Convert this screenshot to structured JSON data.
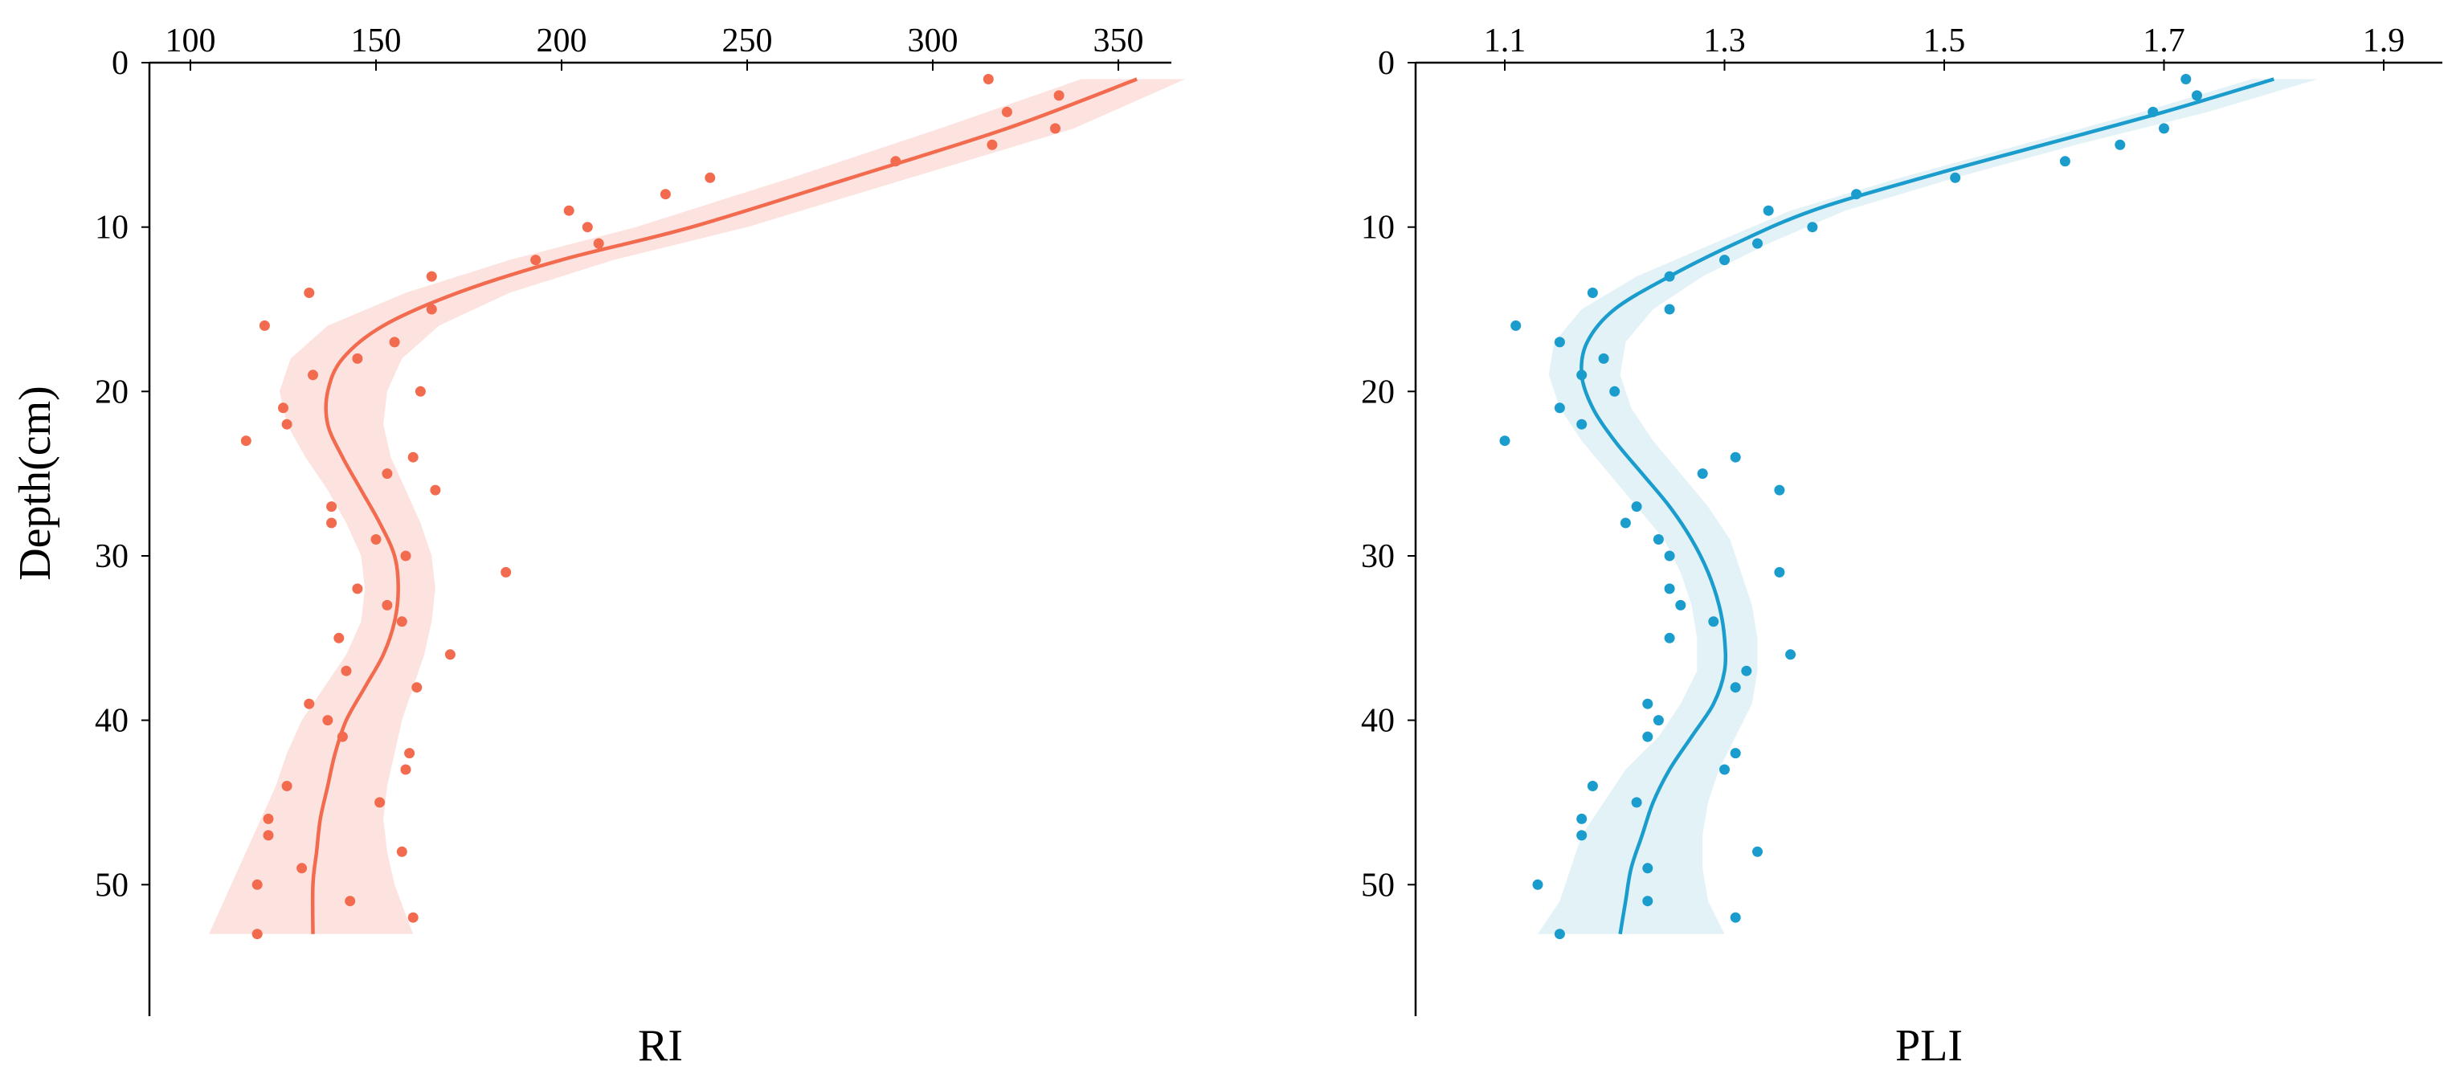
{
  "chart_data": [
    {
      "type": "scatter",
      "xlabel": "RI",
      "ylabel": "Depth(cm)",
      "x_axis_position": "top",
      "y_axis_inverted": true,
      "xlim": [
        98,
        368
      ],
      "ylim": [
        0,
        58
      ],
      "xticks": [
        100,
        150,
        200,
        250,
        300,
        350
      ],
      "yticks": [
        0,
        10,
        20,
        30,
        40,
        50
      ],
      "grid": false,
      "legend": "none",
      "colors": {
        "points": "#f26b4f",
        "line": "#f26b4f",
        "band": "#fde3df"
      },
      "points": [
        {
          "x": 315,
          "y": 1
        },
        {
          "x": 334,
          "y": 2
        },
        {
          "x": 320,
          "y": 3
        },
        {
          "x": 333,
          "y": 4
        },
        {
          "x": 316,
          "y": 5
        },
        {
          "x": 290,
          "y": 6
        },
        {
          "x": 240,
          "y": 7
        },
        {
          "x": 228,
          "y": 8
        },
        {
          "x": 202,
          "y": 9
        },
        {
          "x": 207,
          "y": 10
        },
        {
          "x": 210,
          "y": 11
        },
        {
          "x": 193,
          "y": 12
        },
        {
          "x": 165,
          "y": 13
        },
        {
          "x": 132,
          "y": 14
        },
        {
          "x": 165,
          "y": 15
        },
        {
          "x": 120,
          "y": 16
        },
        {
          "x": 155,
          "y": 17
        },
        {
          "x": 145,
          "y": 18
        },
        {
          "x": 133,
          "y": 19
        },
        {
          "x": 162,
          "y": 20
        },
        {
          "x": 125,
          "y": 21
        },
        {
          "x": 126,
          "y": 22
        },
        {
          "x": 115,
          "y": 23
        },
        {
          "x": 160,
          "y": 24
        },
        {
          "x": 153,
          "y": 25
        },
        {
          "x": 166,
          "y": 26
        },
        {
          "x": 138,
          "y": 27
        },
        {
          "x": 138,
          "y": 28
        },
        {
          "x": 150,
          "y": 29
        },
        {
          "x": 158,
          "y": 30
        },
        {
          "x": 185,
          "y": 31
        },
        {
          "x": 145,
          "y": 32
        },
        {
          "x": 153,
          "y": 33
        },
        {
          "x": 157,
          "y": 34
        },
        {
          "x": 140,
          "y": 35
        },
        {
          "x": 170,
          "y": 36
        },
        {
          "x": 142,
          "y": 37
        },
        {
          "x": 161,
          "y": 38
        },
        {
          "x": 132,
          "y": 39
        },
        {
          "x": 137,
          "y": 40
        },
        {
          "x": 141,
          "y": 41
        },
        {
          "x": 159,
          "y": 42
        },
        {
          "x": 158,
          "y": 43
        },
        {
          "x": 126,
          "y": 44
        },
        {
          "x": 151,
          "y": 45
        },
        {
          "x": 121,
          "y": 46
        },
        {
          "x": 121,
          "y": 47
        },
        {
          "x": 157,
          "y": 48
        },
        {
          "x": 130,
          "y": 49
        },
        {
          "x": 118,
          "y": 50
        },
        {
          "x": 143,
          "y": 51
        },
        {
          "x": 160,
          "y": 52
        },
        {
          "x": 118,
          "y": 53
        }
      ],
      "trend": [
        {
          "x": 355,
          "y": 1
        },
        {
          "x": 320,
          "y": 4
        },
        {
          "x": 278,
          "y": 7
        },
        {
          "x": 235,
          "y": 10
        },
        {
          "x": 200,
          "y": 12
        },
        {
          "x": 172,
          "y": 14
        },
        {
          "x": 152,
          "y": 16
        },
        {
          "x": 141,
          "y": 18
        },
        {
          "x": 137,
          "y": 20
        },
        {
          "x": 137,
          "y": 22
        },
        {
          "x": 141,
          "y": 24
        },
        {
          "x": 146,
          "y": 26
        },
        {
          "x": 151,
          "y": 28
        },
        {
          "x": 155,
          "y": 30
        },
        {
          "x": 156,
          "y": 32
        },
        {
          "x": 155,
          "y": 34
        },
        {
          "x": 152,
          "y": 36
        },
        {
          "x": 147,
          "y": 38
        },
        {
          "x": 142,
          "y": 40
        },
        {
          "x": 139,
          "y": 42
        },
        {
          "x": 137,
          "y": 44
        },
        {
          "x": 135,
          "y": 46
        },
        {
          "x": 134,
          "y": 48
        },
        {
          "x": 133,
          "y": 50
        },
        {
          "x": 133,
          "y": 53
        }
      ],
      "band_lower": [
        340,
        302,
        262,
        220,
        186,
        158,
        137,
        127,
        124,
        126,
        131,
        137,
        142,
        146,
        147,
        146,
        142,
        136,
        130,
        126,
        123,
        119,
        115,
        111,
        105
      ],
      "band_upper": [
        368,
        338,
        294,
        250,
        214,
        186,
        167,
        157,
        153,
        152,
        154,
        158,
        162,
        165,
        166,
        165,
        163,
        160,
        157,
        155,
        153,
        152,
        153,
        155,
        160
      ]
    },
    {
      "type": "scatter",
      "xlabel": "PLI",
      "ylabel": "",
      "x_axis_position": "top",
      "y_axis_inverted": true,
      "xlim": [
        1.02,
        1.92
      ],
      "ylim": [
        0,
        58
      ],
      "xticks": [
        "1.1",
        "1.3",
        "1.5",
        "1.7",
        "1.9"
      ],
      "yticks": [
        0,
        10,
        20,
        30,
        40,
        50
      ],
      "grid": false,
      "legend": "none",
      "colors": {
        "points": "#1a9ccd",
        "line": "#1a9ccd",
        "band": "#e3f2f6"
      },
      "points": [
        {
          "x": 1.72,
          "y": 1
        },
        {
          "x": 1.73,
          "y": 2
        },
        {
          "x": 1.69,
          "y": 3
        },
        {
          "x": 1.7,
          "y": 4
        },
        {
          "x": 1.66,
          "y": 5
        },
        {
          "x": 1.61,
          "y": 6
        },
        {
          "x": 1.51,
          "y": 7
        },
        {
          "x": 1.42,
          "y": 8
        },
        {
          "x": 1.34,
          "y": 9
        },
        {
          "x": 1.38,
          "y": 10
        },
        {
          "x": 1.33,
          "y": 11
        },
        {
          "x": 1.3,
          "y": 12
        },
        {
          "x": 1.25,
          "y": 13
        },
        {
          "x": 1.18,
          "y": 14
        },
        {
          "x": 1.25,
          "y": 15
        },
        {
          "x": 1.11,
          "y": 16
        },
        {
          "x": 1.15,
          "y": 17
        },
        {
          "x": 1.19,
          "y": 18
        },
        {
          "x": 1.17,
          "y": 19
        },
        {
          "x": 1.2,
          "y": 20
        },
        {
          "x": 1.15,
          "y": 21
        },
        {
          "x": 1.17,
          "y": 22
        },
        {
          "x": 1.1,
          "y": 23
        },
        {
          "x": 1.31,
          "y": 24
        },
        {
          "x": 1.28,
          "y": 25
        },
        {
          "x": 1.35,
          "y": 26
        },
        {
          "x": 1.22,
          "y": 27
        },
        {
          "x": 1.21,
          "y": 28
        },
        {
          "x": 1.24,
          "y": 29
        },
        {
          "x": 1.25,
          "y": 30
        },
        {
          "x": 1.35,
          "y": 31
        },
        {
          "x": 1.25,
          "y": 32
        },
        {
          "x": 1.26,
          "y": 33
        },
        {
          "x": 1.29,
          "y": 34
        },
        {
          "x": 1.25,
          "y": 35
        },
        {
          "x": 1.36,
          "y": 36
        },
        {
          "x": 1.32,
          "y": 37
        },
        {
          "x": 1.31,
          "y": 38
        },
        {
          "x": 1.23,
          "y": 39
        },
        {
          "x": 1.24,
          "y": 40
        },
        {
          "x": 1.23,
          "y": 41
        },
        {
          "x": 1.31,
          "y": 42
        },
        {
          "x": 1.3,
          "y": 43
        },
        {
          "x": 1.18,
          "y": 44
        },
        {
          "x": 1.22,
          "y": 45
        },
        {
          "x": 1.17,
          "y": 46
        },
        {
          "x": 1.17,
          "y": 47
        },
        {
          "x": 1.33,
          "y": 48
        },
        {
          "x": 1.23,
          "y": 49
        },
        {
          "x": 1.13,
          "y": 50
        },
        {
          "x": 1.23,
          "y": 51
        },
        {
          "x": 1.31,
          "y": 52
        },
        {
          "x": 1.15,
          "y": 53
        }
      ],
      "trend": [
        {
          "x": 1.8,
          "y": 1
        },
        {
          "x": 1.7,
          "y": 3
        },
        {
          "x": 1.59,
          "y": 5
        },
        {
          "x": 1.48,
          "y": 7
        },
        {
          "x": 1.38,
          "y": 9
        },
        {
          "x": 1.31,
          "y": 11
        },
        {
          "x": 1.25,
          "y": 13
        },
        {
          "x": 1.2,
          "y": 15
        },
        {
          "x": 1.175,
          "y": 17
        },
        {
          "x": 1.17,
          "y": 19
        },
        {
          "x": 1.18,
          "y": 21
        },
        {
          "x": 1.2,
          "y": 23
        },
        {
          "x": 1.225,
          "y": 25
        },
        {
          "x": 1.25,
          "y": 27
        },
        {
          "x": 1.27,
          "y": 29
        },
        {
          "x": 1.285,
          "y": 31
        },
        {
          "x": 1.295,
          "y": 33
        },
        {
          "x": 1.3,
          "y": 35
        },
        {
          "x": 1.3,
          "y": 37
        },
        {
          "x": 1.29,
          "y": 39
        },
        {
          "x": 1.27,
          "y": 41
        },
        {
          "x": 1.25,
          "y": 43
        },
        {
          "x": 1.235,
          "y": 45
        },
        {
          "x": 1.225,
          "y": 47
        },
        {
          "x": 1.215,
          "y": 49
        },
        {
          "x": 1.21,
          "y": 51
        },
        {
          "x": 1.205,
          "y": 53
        }
      ],
      "band_lower": [
        1.78,
        1.68,
        1.57,
        1.46,
        1.36,
        1.29,
        1.22,
        1.17,
        1.145,
        1.14,
        1.15,
        1.17,
        1.195,
        1.22,
        1.245,
        1.26,
        1.27,
        1.275,
        1.275,
        1.26,
        1.24,
        1.21,
        1.19,
        1.17,
        1.16,
        1.15,
        1.13
      ],
      "band_upper": [
        1.84,
        1.74,
        1.62,
        1.51,
        1.41,
        1.34,
        1.28,
        1.235,
        1.21,
        1.205,
        1.215,
        1.235,
        1.26,
        1.285,
        1.305,
        1.315,
        1.325,
        1.33,
        1.33,
        1.325,
        1.31,
        1.295,
        1.285,
        1.28,
        1.28,
        1.285,
        1.3
      ]
    }
  ]
}
